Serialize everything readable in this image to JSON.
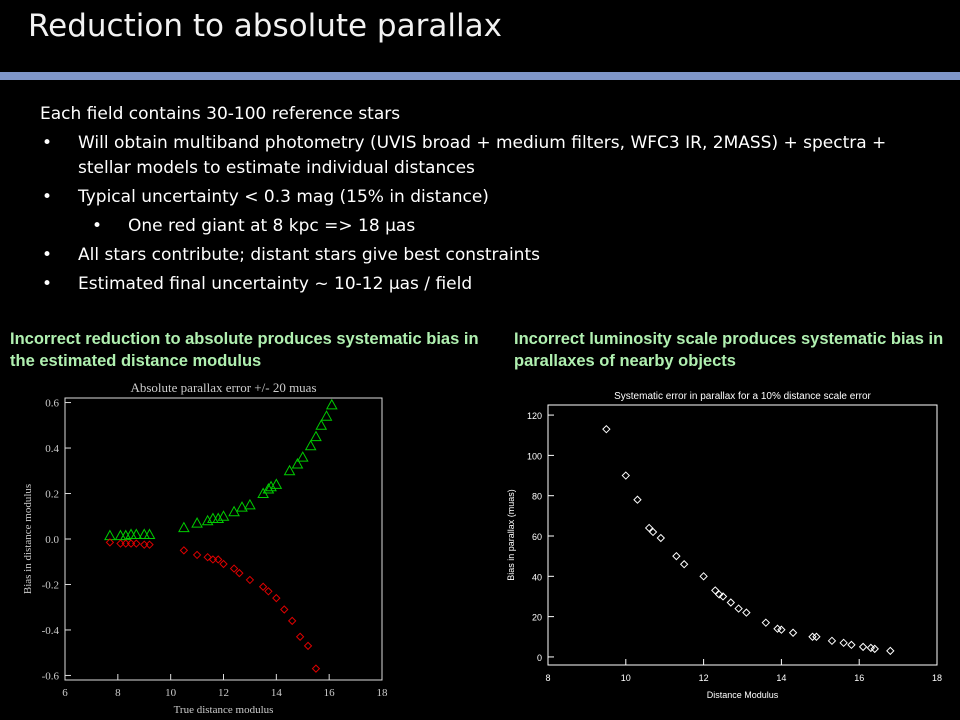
{
  "header": {
    "title": "Reduction to absolute parallax"
  },
  "body": {
    "intro": "Each field contains 30-100 reference stars",
    "bullets": [
      {
        "text": "Will obtain multiband photometry (UVIS broad + medium filters, WFC3 IR, 2MASS) + spectra + stellar models to estimate individual distances",
        "level": 1
      },
      {
        "text": "Typical uncertainty < 0.3 mag (15% in distance)",
        "level": 1
      },
      {
        "text": "One red giant at 8 kpc => 18 μas",
        "level": 2
      },
      {
        "text": "All stars contribute; distant stars give best constraints",
        "level": 1
      },
      {
        "text": "Estimated final uncertainty ~ 10-12 μas / field",
        "level": 1
      }
    ]
  },
  "captions": [
    "Incorrect reduction to absolute produces systematic bias in the estimated distance modulus",
    "Incorrect luminosity scale produces systematic bias in parallaxes of nearby objects"
  ],
  "chart_data": [
    {
      "type": "scatter",
      "title": "Absolute parallax error +/- 20 muas",
      "x_label": "True distance modulus",
      "y_label": "Bias in distance modulus",
      "xlim": [
        6,
        18
      ],
      "ylim": [
        -0.62,
        0.62
      ],
      "xticks": [
        6,
        8,
        10,
        12,
        14,
        16,
        18
      ],
      "yticks": [
        -0.6,
        -0.4,
        -0.2,
        {
          "value": 0,
          "label": "0.0"
        },
        0.2,
        0.4,
        0.6
      ],
      "series": [
        {
          "color": "#00cc00",
          "marker": "triangle",
          "x": [
            7.7,
            8.1,
            8.3,
            8.5,
            8.7,
            9.0,
            9.2,
            10.5,
            11.0,
            11.4,
            11.6,
            11.8,
            12.0,
            12.4,
            12.7,
            13.0,
            13.5,
            13.7,
            13.8,
            14.0,
            14.5,
            14.8,
            15.0,
            15.3,
            15.5,
            15.7,
            15.9,
            16.1
          ],
          "values": [
            0.015,
            0.015,
            0.015,
            0.02,
            0.02,
            0.02,
            0.02,
            0.05,
            0.07,
            0.08,
            0.09,
            0.09,
            0.1,
            0.12,
            0.14,
            0.15,
            0.2,
            0.22,
            0.23,
            0.24,
            0.3,
            0.33,
            0.36,
            0.41,
            0.45,
            0.5,
            0.54,
            0.59
          ]
        },
        {
          "color": "#dd0000",
          "marker": "diamond",
          "x": [
            7.7,
            8.1,
            8.3,
            8.5,
            8.7,
            9.0,
            9.2,
            10.5,
            11.0,
            11.4,
            11.6,
            11.8,
            12.0,
            12.4,
            12.6,
            13.0,
            13.5,
            13.7,
            14.0,
            14.3,
            14.6,
            14.9,
            15.2,
            15.5
          ],
          "values": [
            -0.015,
            -0.02,
            -0.02,
            -0.02,
            -0.02,
            -0.025,
            -0.025,
            -0.05,
            -0.07,
            -0.08,
            -0.09,
            -0.09,
            -0.11,
            -0.13,
            -0.15,
            -0.18,
            -0.21,
            -0.23,
            -0.26,
            -0.31,
            -0.36,
            -0.43,
            -0.47,
            -0.57
          ]
        }
      ]
    },
    {
      "type": "scatter",
      "title": "Systematic error in parallax for a 10% distance scale error",
      "x_label": "Distance Modulus",
      "y_label": "Bias in parallax (muas)",
      "xlim": [
        8,
        18
      ],
      "ylim": [
        -4,
        125
      ],
      "xticks": [
        8,
        10,
        12,
        14,
        16,
        18
      ],
      "yticks": [
        0,
        20,
        40,
        60,
        80,
        100,
        120
      ],
      "series": [
        {
          "color": "#ffffff",
          "marker": "diamond",
          "x": [
            9.5,
            10.0,
            10.3,
            10.6,
            10.7,
            10.9,
            11.3,
            11.5,
            12.0,
            12.3,
            12.4,
            12.5,
            12.7,
            12.9,
            13.1,
            13.6,
            13.9,
            14.0,
            14.3,
            14.8,
            14.9,
            15.3,
            15.6,
            15.8,
            16.1,
            16.3,
            16.4,
            16.8
          ],
          "values": [
            113,
            90,
            78,
            64,
            62,
            59,
            50,
            46,
            40,
            33,
            31,
            30,
            27,
            24,
            22,
            17,
            14,
            13.5,
            12,
            10,
            10,
            8,
            7,
            6,
            5,
            4.5,
            4,
            3
          ]
        }
      ]
    }
  ]
}
